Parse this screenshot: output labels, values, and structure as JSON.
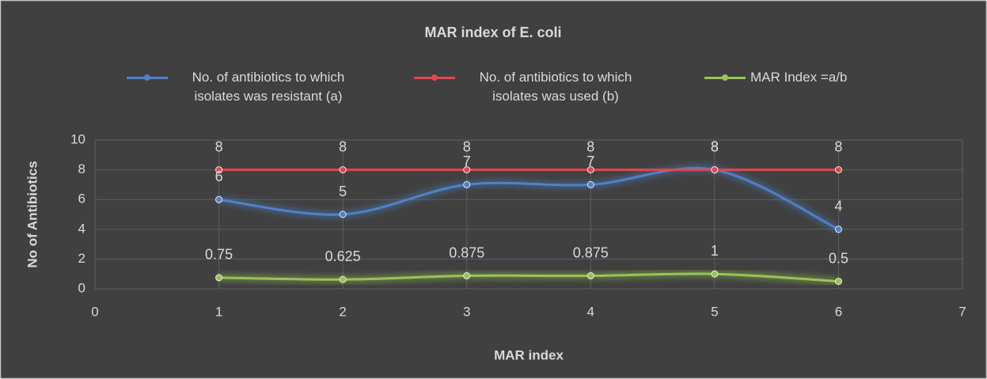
{
  "chart_data": {
    "type": "line",
    "title": "MAR index of E. coli",
    "x_label": "MAR index",
    "y_label": "No of Antibiotics",
    "x": [
      1,
      2,
      3,
      4,
      5,
      6
    ],
    "series": [
      {
        "name": "No. of antibiotics to which isolates was resistant (a)",
        "color": "#4f81c8",
        "values": [
          6,
          5,
          7,
          7,
          8,
          4
        ]
      },
      {
        "name": "No. of antibiotics to which isolates was used (b)",
        "color": "#e0474f",
        "values": [
          8,
          8,
          8,
          8,
          8,
          8
        ]
      },
      {
        "name": "MAR Index =a/b",
        "color": "#97c454",
        "values": [
          0.75,
          0.625,
          0.875,
          0.875,
          1,
          0.5
        ]
      }
    ],
    "xlim": [
      0,
      7
    ],
    "xticks": [
      0,
      1,
      2,
      3,
      4,
      5,
      6,
      7
    ],
    "ylim": [
      0,
      10
    ],
    "yticks": [
      0,
      2,
      4,
      6,
      8,
      10
    ],
    "grid": true,
    "legend": "top",
    "smooth": true
  }
}
